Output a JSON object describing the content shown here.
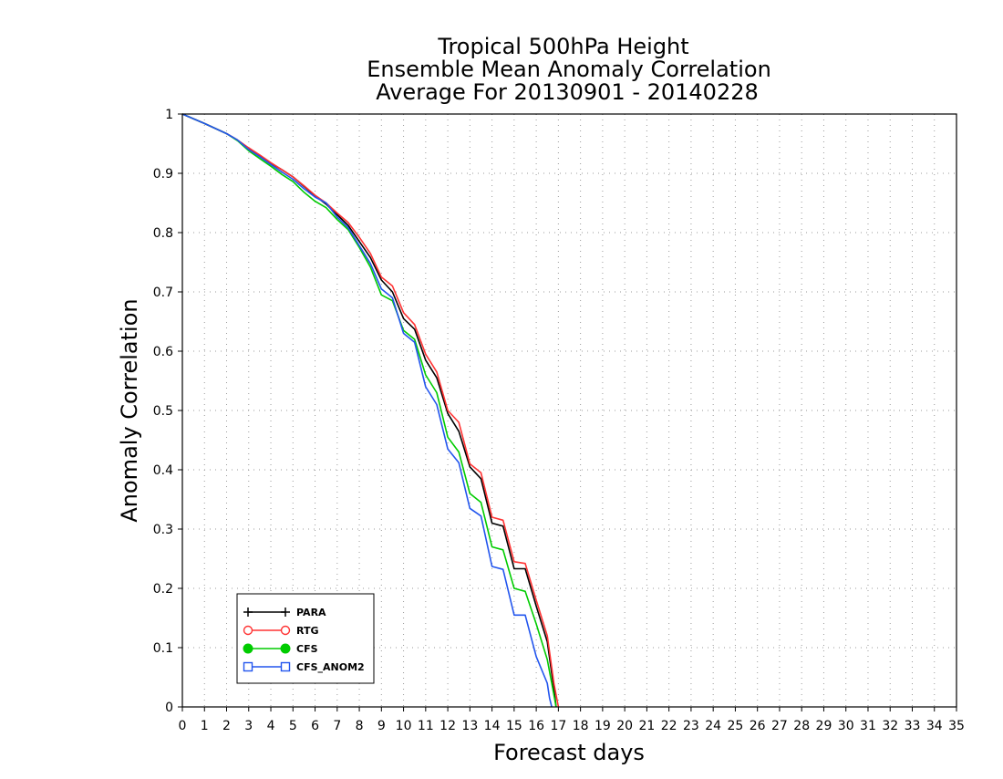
{
  "chart_data": {
    "type": "line",
    "title": [
      "Tropical 500hPa Height",
      "Ensemble Mean Anomaly Correlation",
      "Average For 20130901 - 20140228"
    ],
    "xlabel": "Forecast days",
    "ylabel": "Anomaly Correlation",
    "xlim": [
      0,
      35
    ],
    "ylim": [
      0,
      1
    ],
    "x_ticks": [
      "0",
      "1",
      "2",
      "3",
      "4",
      "5",
      "6",
      "7",
      "8",
      "9",
      "10",
      "11",
      "12",
      "13",
      "14",
      "15",
      "16",
      "17",
      "18",
      "19",
      "20",
      "21",
      "22",
      "23",
      "24",
      "25",
      "26",
      "27",
      "28",
      "29",
      "30",
      "31",
      "32",
      "33",
      "34",
      "35"
    ],
    "y_ticks": [
      "0",
      "0.1",
      "0.2",
      "0.3",
      "0.4",
      "0.5",
      "0.6",
      "0.7",
      "0.8",
      "0.9",
      "1"
    ],
    "grid": true,
    "legend_position": "bottom-left",
    "series": [
      {
        "name": "PARA",
        "color": "#000000",
        "marker": "plus",
        "points": [
          [
            0,
            1
          ],
          [
            1,
            0.984
          ],
          [
            2,
            0.967
          ],
          [
            2.5,
            0.956
          ],
          [
            3,
            0.942
          ],
          [
            3.5,
            0.93
          ],
          [
            4,
            0.917
          ],
          [
            4.5,
            0.906
          ],
          [
            5,
            0.894
          ],
          [
            5.5,
            0.878
          ],
          [
            6,
            0.862
          ],
          [
            6.5,
            0.848
          ],
          [
            7,
            0.83
          ],
          [
            7.5,
            0.812
          ],
          [
            8,
            0.785
          ],
          [
            8.5,
            0.758
          ],
          [
            9,
            0.72
          ],
          [
            9.5,
            0.7
          ],
          [
            10,
            0.655
          ],
          [
            10.5,
            0.637
          ],
          [
            11,
            0.585
          ],
          [
            11.5,
            0.555
          ],
          [
            12,
            0.495
          ],
          [
            12.5,
            0.465
          ],
          [
            13,
            0.405
          ],
          [
            13.5,
            0.385
          ],
          [
            14,
            0.31
          ],
          [
            14.5,
            0.305
          ],
          [
            15,
            0.233
          ],
          [
            15.5,
            0.233
          ],
          [
            16,
            0.17
          ],
          [
            16.5,
            0.11
          ],
          [
            16.8,
            0.03
          ],
          [
            16.9,
            0
          ]
        ]
      },
      {
        "name": "RTG",
        "color": "#ff3333",
        "marker": "open-circle",
        "points": [
          [
            0,
            1
          ],
          [
            1,
            0.984
          ],
          [
            2,
            0.967
          ],
          [
            2.5,
            0.956
          ],
          [
            3,
            0.943
          ],
          [
            3.5,
            0.931
          ],
          [
            4,
            0.918
          ],
          [
            4.5,
            0.906
          ],
          [
            5,
            0.894
          ],
          [
            5.5,
            0.879
          ],
          [
            6,
            0.863
          ],
          [
            6.5,
            0.85
          ],
          [
            7,
            0.833
          ],
          [
            7.5,
            0.817
          ],
          [
            8,
            0.792
          ],
          [
            8.5,
            0.765
          ],
          [
            9,
            0.725
          ],
          [
            9.5,
            0.71
          ],
          [
            10,
            0.665
          ],
          [
            10.5,
            0.645
          ],
          [
            11,
            0.595
          ],
          [
            11.5,
            0.565
          ],
          [
            12,
            0.5
          ],
          [
            12.5,
            0.48
          ],
          [
            13,
            0.41
          ],
          [
            13.5,
            0.395
          ],
          [
            14,
            0.32
          ],
          [
            14.5,
            0.315
          ],
          [
            15,
            0.245
          ],
          [
            15.5,
            0.242
          ],
          [
            16,
            0.18
          ],
          [
            16.5,
            0.12
          ],
          [
            16.8,
            0.04
          ],
          [
            17,
            0
          ]
        ]
      },
      {
        "name": "CFS",
        "color": "#00cc00",
        "marker": "filled-circle",
        "points": [
          [
            0,
            1
          ],
          [
            1,
            0.984
          ],
          [
            2,
            0.967
          ],
          [
            2.5,
            0.955
          ],
          [
            3,
            0.938
          ],
          [
            3.5,
            0.925
          ],
          [
            4,
            0.912
          ],
          [
            4.5,
            0.898
          ],
          [
            5,
            0.886
          ],
          [
            5.5,
            0.868
          ],
          [
            6,
            0.853
          ],
          [
            6.5,
            0.842
          ],
          [
            7,
            0.822
          ],
          [
            7.5,
            0.805
          ],
          [
            8,
            0.775
          ],
          [
            8.5,
            0.742
          ],
          [
            9,
            0.695
          ],
          [
            9.5,
            0.685
          ],
          [
            10,
            0.635
          ],
          [
            10.5,
            0.62
          ],
          [
            11,
            0.56
          ],
          [
            11.5,
            0.53
          ],
          [
            12,
            0.455
          ],
          [
            12.5,
            0.43
          ],
          [
            13,
            0.36
          ],
          [
            13.5,
            0.345
          ],
          [
            14,
            0.27
          ],
          [
            14.5,
            0.265
          ],
          [
            15,
            0.2
          ],
          [
            15.5,
            0.195
          ],
          [
            16,
            0.14
          ],
          [
            16.5,
            0.08
          ],
          [
            16.8,
            0.02
          ],
          [
            16.9,
            0
          ]
        ]
      },
      {
        "name": "CFS_ANOM2",
        "color": "#2255ee",
        "marker": "open-square",
        "points": [
          [
            0,
            1
          ],
          [
            1,
            0.984
          ],
          [
            2,
            0.967
          ],
          [
            2.5,
            0.956
          ],
          [
            3,
            0.94
          ],
          [
            3.5,
            0.928
          ],
          [
            4,
            0.915
          ],
          [
            4.5,
            0.902
          ],
          [
            5,
            0.89
          ],
          [
            5.5,
            0.874
          ],
          [
            6,
            0.86
          ],
          [
            6.5,
            0.85
          ],
          [
            7,
            0.826
          ],
          [
            7.5,
            0.808
          ],
          [
            8,
            0.778
          ],
          [
            8.5,
            0.748
          ],
          [
            9,
            0.705
          ],
          [
            9.5,
            0.69
          ],
          [
            10,
            0.63
          ],
          [
            10.5,
            0.615
          ],
          [
            11,
            0.54
          ],
          [
            11.5,
            0.51
          ],
          [
            12,
            0.435
          ],
          [
            12.5,
            0.412
          ],
          [
            13,
            0.335
          ],
          [
            13.5,
            0.322
          ],
          [
            14,
            0.237
          ],
          [
            14.5,
            0.232
          ],
          [
            15,
            0.155
          ],
          [
            15.5,
            0.155
          ],
          [
            16,
            0.085
          ],
          [
            16.5,
            0.04
          ],
          [
            16.6,
            0.015
          ],
          [
            16.7,
            0
          ]
        ]
      }
    ]
  }
}
